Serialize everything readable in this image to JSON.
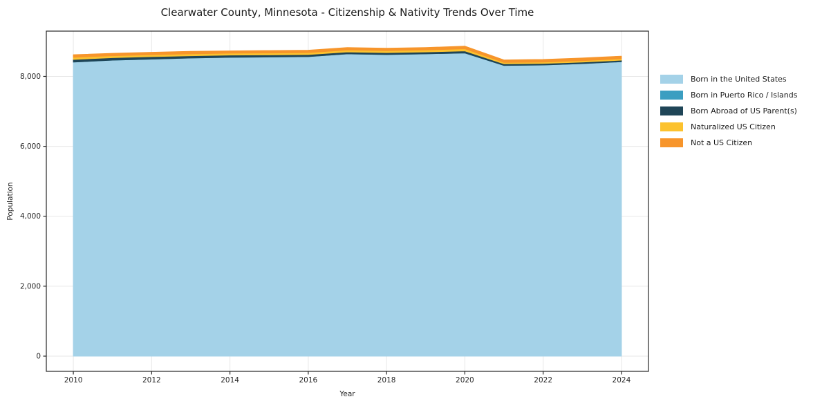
{
  "title": "Clearwater County, Minnesota - Citizenship & Nativity Trends Over Time",
  "chart_data": {
    "type": "area",
    "stacked": true,
    "title": "Clearwater County, Minnesota - Citizenship & Nativity Trends Over Time",
    "xlabel": "Year",
    "ylabel": "Population",
    "x": [
      2010,
      2011,
      2012,
      2013,
      2014,
      2015,
      2016,
      2017,
      2018,
      2019,
      2020,
      2021,
      2022,
      2023,
      2024
    ],
    "series": [
      {
        "name": "Born in the United States",
        "color": "#a4d2e8",
        "values": [
          8410,
          8465,
          8495,
          8525,
          8545,
          8555,
          8565,
          8645,
          8625,
          8645,
          8670,
          8315,
          8325,
          8365,
          8420
        ]
      },
      {
        "name": "Born in Puerto Rico / Islands",
        "color": "#3b9ec1",
        "values": [
          0,
          0,
          0,
          0,
          0,
          0,
          0,
          0,
          0,
          0,
          0,
          0,
          0,
          0,
          0
        ]
      },
      {
        "name": "Born Abroad of US Parent(s)",
        "color": "#1f4557",
        "values": [
          75,
          70,
          70,
          65,
          65,
          60,
          60,
          55,
          55,
          55,
          60,
          45,
          45,
          45,
          45
        ]
      },
      {
        "name": "Naturalized US Citizen",
        "color": "#fcc22e",
        "values": [
          60,
          55,
          55,
          55,
          55,
          55,
          55,
          55,
          55,
          55,
          60,
          40,
          40,
          40,
          40
        ]
      },
      {
        "name": "Not a US Citizen",
        "color": "#f7952b",
        "values": [
          75,
          70,
          70,
          70,
          65,
          70,
          70,
          70,
          70,
          70,
          75,
          70,
          75,
          75,
          75
        ]
      }
    ],
    "xticks": [
      2010,
      2012,
      2014,
      2016,
      2018,
      2020,
      2022,
      2024
    ],
    "xtick_labels": [
      "2010",
      "2012",
      "2014",
      "2016",
      "2018",
      "2020",
      "2022",
      "2024"
    ],
    "yticks": [
      0,
      2000,
      4000,
      6000,
      8000
    ],
    "ytick_labels": [
      "0",
      "2,000",
      "4,000",
      "6,000",
      "8,000"
    ],
    "xlim": [
      2009.31,
      2024.69
    ],
    "ylim": [
      -435,
      9295
    ],
    "grid": true,
    "legend_position": "right"
  },
  "legend": {
    "items": [
      {
        "label": "Born in the United States",
        "color": "#a4d2e8"
      },
      {
        "label": "Born in Puerto Rico / Islands",
        "color": "#3b9ec1"
      },
      {
        "label": "Born Abroad of US Parent(s)",
        "color": "#1f4557"
      },
      {
        "label": "Naturalized US Citizen",
        "color": "#fcc22e"
      },
      {
        "label": "Not a US Citizen",
        "color": "#f7952b"
      }
    ]
  },
  "style": {
    "grid_color": "#e7e7e7",
    "border_color": "#262626",
    "tick_color": "#262626",
    "background": "#ffffff"
  }
}
